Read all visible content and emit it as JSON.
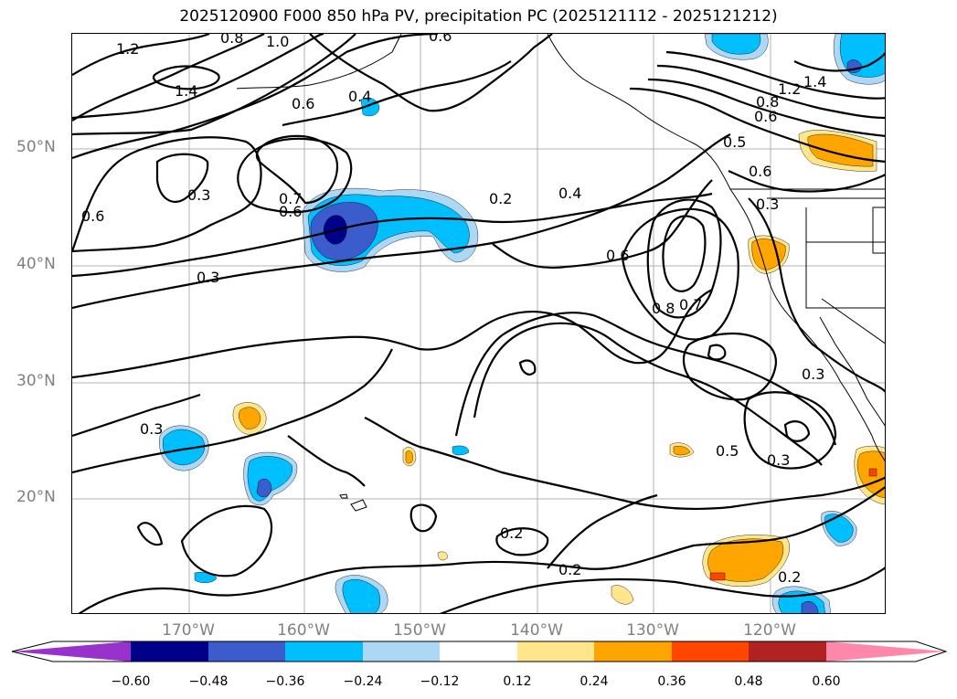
{
  "title": "2025120900 F000 850 hPa PV, precipitation PC (2025121112 - 2025121212)",
  "axes": {
    "lat_ticks": [
      "50°N",
      "40°N",
      "30°N",
      "20°N"
    ],
    "lon_ticks": [
      "170°W",
      "160°W",
      "150°W",
      "140°W",
      "130°W",
      "120°W"
    ]
  },
  "contour_labels": [
    "1.2",
    "0.8",
    "1.0",
    "0.6",
    "1.4",
    "0.6",
    "0.4",
    "0.6",
    "0.3",
    "0.7",
    "0.6",
    "0.2",
    "0.4",
    "0.3",
    "0.6",
    "0.8",
    "0.7",
    "0.5",
    "0.6",
    "0.3",
    "1.2",
    "1.4",
    "0.8",
    "0.6",
    "0.3",
    "0.3",
    "0.5",
    "0.3",
    "0.2",
    "0.2",
    "0.2"
  ],
  "colorbar": {
    "tick_labels": [
      "−0.60",
      "−0.48",
      "−0.36",
      "−0.24",
      "−0.12",
      "0.12",
      "0.24",
      "0.36",
      "0.48",
      "0.60"
    ],
    "colors": [
      "#9932cc",
      "#00008b",
      "#3a5ccc",
      "#00bfff",
      "#add8f5",
      "#ffffff",
      "#ffe68a",
      "#ffa500",
      "#ff4500",
      "#b22222",
      "#ff88aa"
    ]
  },
  "shading_colors": {
    "neg_light": "#add8f5",
    "neg_mid": "#00bfff",
    "neg_strong": "#3a5ccc",
    "neg_max": "#00008b",
    "pos_light": "#ffe68a",
    "pos_mid": "#ffa500",
    "pos_strong": "#ff4500"
  }
}
